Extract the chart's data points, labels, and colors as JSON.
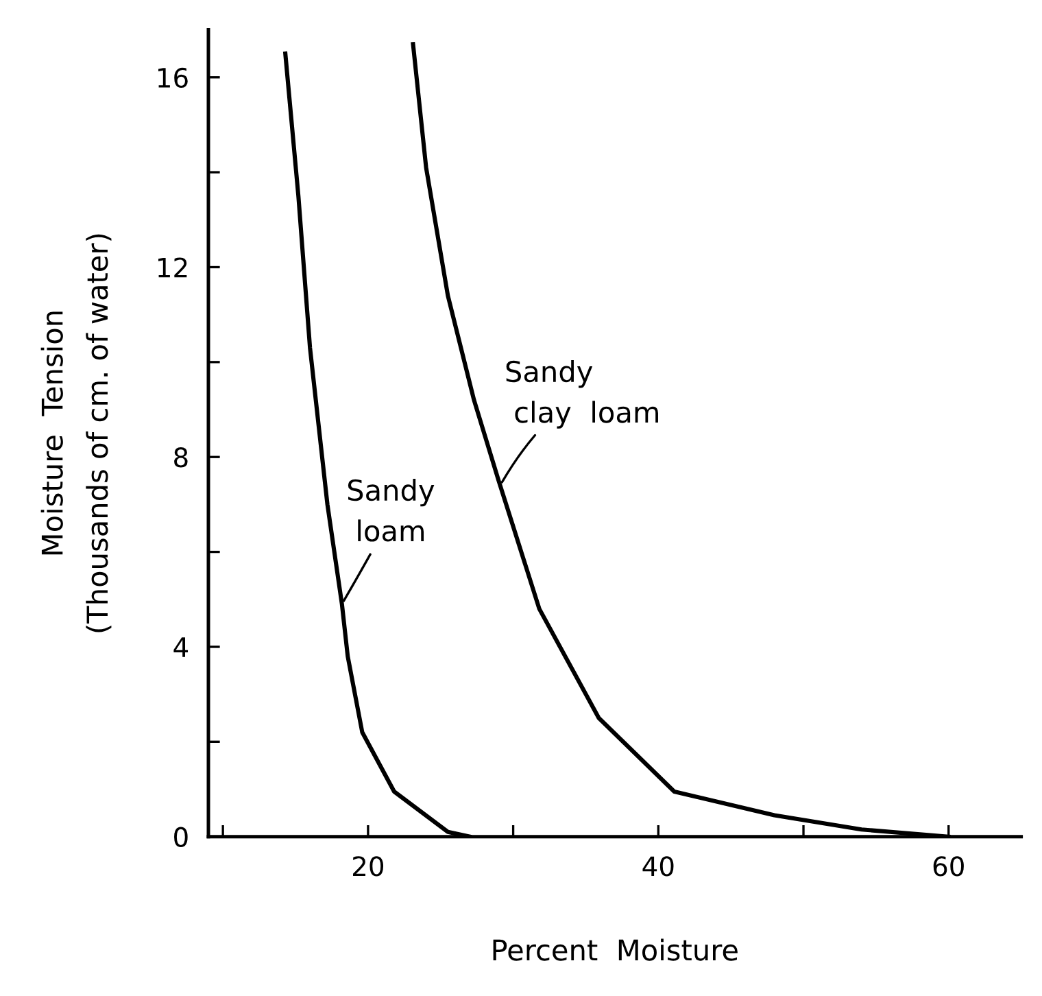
{
  "chart_data": {
    "type": "line",
    "xlabel": "Percent  Moisture",
    "ylabel": "Moisture  Tension\n(Thousands of cm. of water)",
    "xlim": [
      9,
      65
    ],
    "ylim": [
      0,
      17
    ],
    "xticks": [
      {
        "value": 10,
        "label": null
      },
      20,
      {
        "value": 30,
        "label": null
      },
      40,
      {
        "value": 50,
        "label": null
      },
      60
    ],
    "yticks": [
      0,
      {
        "value": 2,
        "label": null
      },
      4,
      {
        "value": 6,
        "label": null
      },
      8,
      {
        "value": 10,
        "label": null
      },
      12,
      {
        "value": 14,
        "label": null
      },
      16
    ],
    "grid": false,
    "legend": false,
    "marker": "none",
    "line_style": "solid",
    "series": [
      {
        "color": "#000000",
        "x": [
          14.3,
          15.2,
          16.0,
          17.2,
          18.2,
          18.6,
          19.6,
          21.8,
          25.5,
          27
        ],
        "values": [
          16.5,
          13.5,
          10.3,
          7.0,
          4.9,
          3.8,
          2.2,
          0.95,
          0.1,
          0
        ]
      },
      {
        "color": "#000000",
        "x": [
          23.1,
          24.0,
          25.5,
          27.3,
          29.0,
          31.8,
          35.9,
          41.1,
          48,
          54,
          60
        ],
        "values": [
          16.7,
          14.1,
          11.4,
          9.2,
          7.5,
          4.8,
          2.5,
          0.95,
          0.45,
          0.15,
          0
        ]
      }
    ],
    "annotations": [
      {
        "text": "Sandy\n loam",
        "x": 18.2,
        "y": 4.9
      },
      {
        "text": "Sandy\n clay  loam",
        "x": 29.1,
        "y": 7.4
      }
    ]
  }
}
